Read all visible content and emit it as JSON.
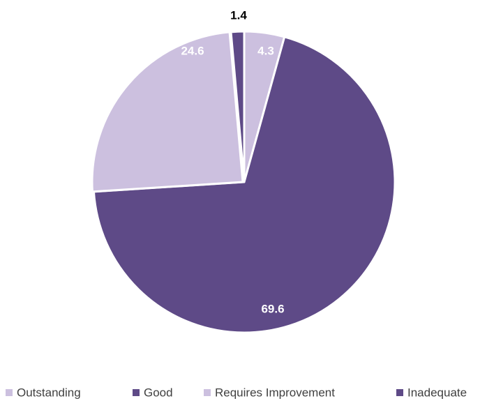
{
  "chart_data": {
    "type": "pie",
    "title": "",
    "categories": [
      "Outstanding",
      "Good",
      "Requires Improvement",
      "Inadequate"
    ],
    "values": [
      4.3,
      69.6,
      24.6,
      1.4
    ],
    "data_labels": [
      "4.3",
      "69.6",
      "24.6",
      "1.4"
    ],
    "colors": [
      "#ccc0df",
      "#5e4a87",
      "#ccc0df",
      "#5e4a87"
    ],
    "label_colors": [
      "#ffffff",
      "#ffffff",
      "#ffffff",
      "#000000"
    ],
    "start_angle": "12 o'clock",
    "direction": "clockwise",
    "legend": {
      "position": "bottom",
      "entries": [
        "Outstanding",
        "Good",
        "Requires Improvement",
        "Inadequate"
      ]
    }
  }
}
